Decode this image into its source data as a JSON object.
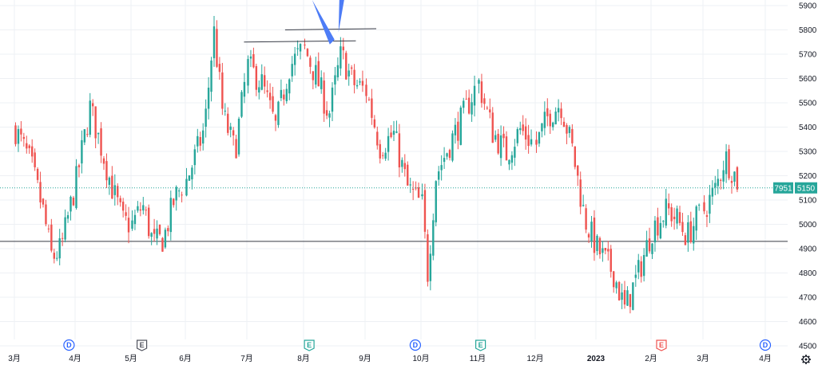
{
  "colors": {
    "up": "#26a69a",
    "down": "#ef5350",
    "grid": "#eef0f4",
    "axis_text": "#131722",
    "price_line": "#26a69a",
    "drawn_line": "#363a45",
    "arrow": "#4d7cf6",
    "event_dividend": "#2962ff",
    "event_earnings_neutral": "#50535e",
    "event_earnings_up": "#26a69a",
    "event_earnings_down": "#ef5350"
  },
  "chart_data": {
    "type": "candlestick",
    "title": "",
    "xlabel": "",
    "ylabel": "",
    "ylim": [
      4500,
      5900
    ],
    "y_ticks": [
      4500,
      4600,
      4700,
      4800,
      4900,
      5000,
      5100,
      5200,
      5300,
      5400,
      5500,
      5600,
      5700,
      5800,
      5900
    ],
    "x_tick_labels": [
      "3月",
      "4月",
      "5月",
      "6月",
      "7月",
      "8月",
      "9月",
      "10月",
      "11月",
      "12月",
      "2023",
      "2月",
      "3月",
      "4月"
    ],
    "grid": true,
    "last_price": {
      "value": 5150,
      "code_label": "7951",
      "value_label": "5150"
    },
    "horizontal_levels": [
      4930
    ],
    "trendline_segments": [
      {
        "from": {
          "month": "7月",
          "y": 5750
        },
        "to": {
          "month": "8月",
          "y": 5755
        }
      },
      {
        "from": {
          "month": "8月",
          "y": 5800
        },
        "to": {
          "month": "9月",
          "y": 5805
        }
      }
    ],
    "events": [
      {
        "label": "D",
        "type": "dividend",
        "month": "4月"
      },
      {
        "label": "E",
        "type": "earnings",
        "month": "5月"
      },
      {
        "label": "E",
        "type": "earnings",
        "month": "8月"
      },
      {
        "label": "D",
        "type": "dividend",
        "month": "10月"
      },
      {
        "label": "E",
        "type": "earnings",
        "month": "11月"
      },
      {
        "label": "E",
        "type": "earnings",
        "month": "2月"
      },
      {
        "label": "D",
        "type": "dividend",
        "month": "4月"
      }
    ],
    "series": [
      {
        "segments": [
          {
            "from": "3月",
            "start": 5390,
            "path": [
              [
                0.0,
                5390
              ],
              [
                0.25,
                5250
              ],
              [
                0.45,
                5060
              ],
              [
                0.6,
                4860
              ],
              [
                0.75,
                4900
              ],
              [
                1.0,
                5180
              ]
            ]
          },
          {
            "from": "4月",
            "start": 5180,
            "path": [
              [
                0.0,
                5180
              ],
              [
                0.25,
                5480
              ],
              [
                0.45,
                5320
              ],
              [
                0.65,
                5150
              ],
              [
                0.85,
                5010
              ],
              [
                1.0,
                5000
              ]
            ]
          },
          {
            "from": "5月",
            "start": 5000,
            "path": [
              [
                0.0,
                5000
              ],
              [
                0.2,
                5080
              ],
              [
                0.4,
                4920
              ],
              [
                0.6,
                4940
              ],
              [
                0.8,
                5100
              ],
              [
                1.0,
                5180
              ]
            ]
          },
          {
            "from": "6月",
            "start": 5180,
            "path": [
              [
                0.0,
                5180
              ],
              [
                0.2,
                5320
              ],
              [
                0.3,
                5400
              ],
              [
                0.45,
                5800
              ],
              [
                0.6,
                5450
              ],
              [
                0.8,
                5300
              ],
              [
                1.0,
                5650
              ]
            ]
          },
          {
            "from": "7月",
            "start": 5650,
            "path": [
              [
                0.0,
                5650
              ],
              [
                0.25,
                5580
              ],
              [
                0.5,
                5400
              ],
              [
                0.75,
                5650
              ],
              [
                1.0,
                5720
              ]
            ]
          },
          {
            "from": "8月",
            "start": 5720,
            "path": [
              [
                0.0,
                5720
              ],
              [
                0.2,
                5600
              ],
              [
                0.4,
                5450
              ],
              [
                0.6,
                5700
              ],
              [
                0.8,
                5580
              ],
              [
                1.0,
                5550
              ]
            ]
          },
          {
            "from": "9月",
            "start": 5550,
            "path": [
              [
                0.0,
                5550
              ],
              [
                0.25,
                5320
              ],
              [
                0.5,
                5370
              ],
              [
                0.75,
                5150
              ],
              [
                1.0,
                5080
              ]
            ]
          },
          {
            "from": "10月",
            "start": 5080,
            "path": [
              [
                0.0,
                5080
              ],
              [
                0.1,
                4800
              ],
              [
                0.25,
                5200
              ],
              [
                0.5,
                5330
              ],
              [
                0.75,
                5450
              ],
              [
                1.0,
                5580
              ]
            ]
          },
          {
            "from": "11月",
            "start": 5580,
            "path": [
              [
                0.0,
                5580
              ],
              [
                0.25,
                5380
              ],
              [
                0.5,
                5290
              ],
              [
                0.75,
                5390
              ],
              [
                1.0,
                5330
              ]
            ]
          },
          {
            "from": "12月",
            "start": 5330,
            "path": [
              [
                0.0,
                5330
              ],
              [
                0.2,
                5450
              ],
              [
                0.4,
                5500
              ],
              [
                0.6,
                5300
              ],
              [
                0.8,
                5020
              ],
              [
                1.0,
                4900
              ]
            ]
          },
          {
            "from": "2023",
            "start": 4900,
            "path": [
              [
                0.0,
                4900
              ],
              [
                0.3,
                4800
              ],
              [
                0.5,
                4650
              ],
              [
                0.75,
                4800
              ],
              [
                1.0,
                4980
              ]
            ]
          },
          {
            "from": "2月",
            "start": 4980,
            "path": [
              [
                0.0,
                4980
              ],
              [
                0.3,
                5060
              ],
              [
                0.5,
                5020
              ],
              [
                0.7,
                4950
              ],
              [
                1.0,
                5060
              ]
            ]
          },
          {
            "from": "3月",
            "start": 5060,
            "path": [
              [
                0.0,
                5060
              ],
              [
                0.2,
                5150
              ],
              [
                0.35,
                5280
              ],
              [
                0.5,
                5210
              ],
              [
                0.6,
                5150
              ]
            ]
          }
        ]
      }
    ]
  },
  "tools": {
    "settings_label": "settings-icon"
  }
}
